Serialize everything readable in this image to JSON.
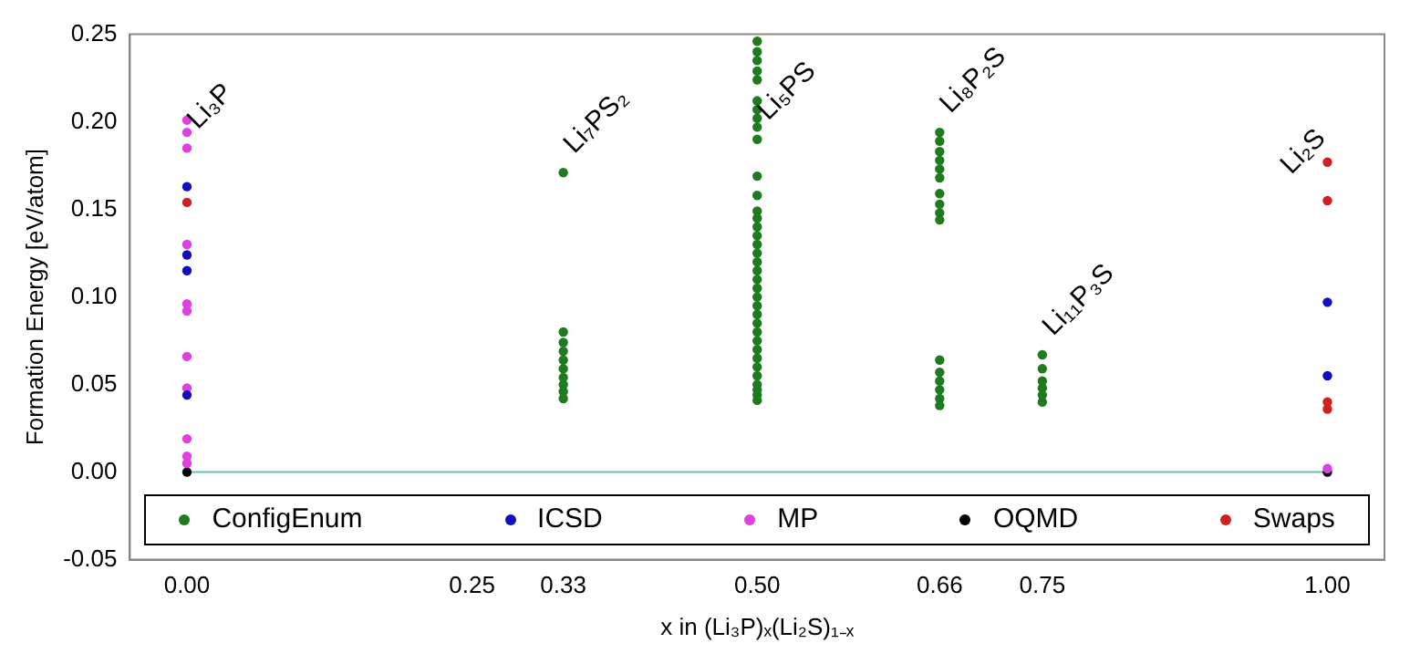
{
  "chart_data": {
    "type": "scatter",
    "xlabel": "x in (Li₃P)ₓ(Li₂S)₁₋ₓ",
    "ylabel": "Formation Energy [eV/atom]",
    "xlim": [
      -0.05,
      1.05
    ],
    "ylim": [
      -0.05,
      0.25
    ],
    "xticks": [
      {
        "value": 0,
        "label": "0.00"
      },
      {
        "value": 0.25,
        "label": "0.25"
      },
      {
        "value": 0.33,
        "label": "0.33"
      },
      {
        "value": 0.5,
        "label": "0.50"
      },
      {
        "value": 0.66,
        "label": "0.66"
      },
      {
        "value": 0.75,
        "label": "0.75"
      },
      {
        "value": 1,
        "label": "1.00"
      }
    ],
    "yticks": [
      {
        "value": -0.05,
        "label": "-0.05"
      },
      {
        "value": 0,
        "label": "0.00"
      },
      {
        "value": 0.05,
        "label": "0.05"
      },
      {
        "value": 0.1,
        "label": "0.10"
      },
      {
        "value": 0.15,
        "label": "0.15"
      },
      {
        "value": 0.2,
        "label": "0.20"
      },
      {
        "value": 0.25,
        "label": "0.25"
      }
    ],
    "grid": false,
    "legend": "bottom",
    "marker": "circle",
    "ref_lines": [
      {
        "axis": "y",
        "value": 0,
        "color": "#66c2b0"
      }
    ],
    "annotations": [
      {
        "text": "Li₃P",
        "x": 0,
        "y": 0.185
      },
      {
        "text": "Li₇PS₂",
        "x": 0.33,
        "y": 0.171
      },
      {
        "text": "Li₅PS",
        "x": 0.5,
        "y": 0.19
      },
      {
        "text": "Li₈P₂S",
        "x": 0.66,
        "y": 0.194
      },
      {
        "text": "Li₁₁P₃S",
        "x": 0.75,
        "y": 0.067
      },
      {
        "text": "Li₂S",
        "x": 1,
        "y": 0.177
      }
    ],
    "series": [
      {
        "name": "ConfigEnum",
        "color": "#1e7b1e",
        "x": [
          0.33,
          0.33,
          0.33,
          0.33,
          0.33,
          0.33,
          0.33,
          0.33,
          0.33,
          0.33,
          0.5,
          0.5,
          0.5,
          0.5,
          0.5,
          0.5,
          0.5,
          0.5,
          0.5,
          0.5,
          0.5,
          0.5,
          0.5,
          0.5,
          0.5,
          0.5,
          0.5,
          0.5,
          0.5,
          0.5,
          0.5,
          0.5,
          0.5,
          0.5,
          0.5,
          0.5,
          0.5,
          0.5,
          0.5,
          0.5,
          0.5,
          0.5,
          0.5,
          0.5,
          0.5,
          0.5,
          0.66,
          0.66,
          0.66,
          0.66,
          0.66,
          0.66,
          0.66,
          0.66,
          0.66,
          0.66,
          0.66,
          0.66,
          0.66,
          0.66,
          0.66,
          0.66,
          0.75,
          0.75,
          0.75,
          0.75,
          0.75,
          0.75
        ],
        "values": [
          0.171,
          0.08,
          0.074,
          0.069,
          0.064,
          0.059,
          0.054,
          0.05,
          0.046,
          0.042,
          0.246,
          0.24,
          0.235,
          0.229,
          0.224,
          0.212,
          0.207,
          0.202,
          0.197,
          0.19,
          0.169,
          0.158,
          0.149,
          0.145,
          0.14,
          0.135,
          0.13,
          0.125,
          0.12,
          0.115,
          0.11,
          0.105,
          0.1,
          0.095,
          0.09,
          0.085,
          0.08,
          0.075,
          0.07,
          0.065,
          0.06,
          0.055,
          0.05,
          0.047,
          0.044,
          0.041,
          0.194,
          0.189,
          0.183,
          0.178,
          0.173,
          0.168,
          0.159,
          0.153,
          0.148,
          0.144,
          0.064,
          0.057,
          0.052,
          0.047,
          0.042,
          0.038,
          0.067,
          0.059,
          0.052,
          0.048,
          0.044,
          0.04
        ]
      },
      {
        "name": "ICSD",
        "color": "#1010c0",
        "x": [
          0,
          0,
          0,
          0,
          1,
          1
        ],
        "values": [
          0.163,
          0.124,
          0.115,
          0.044,
          0.097,
          0.055
        ]
      },
      {
        "name": "MP",
        "color": "#e040e0",
        "x": [
          0,
          0,
          0,
          0,
          0,
          0,
          0,
          0,
          0,
          0,
          0,
          1
        ],
        "values": [
          0.201,
          0.194,
          0.185,
          0.13,
          0.096,
          0.092,
          0.066,
          0.048,
          0.019,
          0.009,
          0.005,
          0.002
        ]
      },
      {
        "name": "OQMD",
        "color": "#000000",
        "x": [
          0,
          1
        ],
        "values": [
          0,
          0
        ]
      },
      {
        "name": "Swaps",
        "color": "#d02020",
        "x": [
          0,
          1,
          1,
          1,
          1
        ],
        "values": [
          0.154,
          0.177,
          0.155,
          0.04,
          0.036
        ]
      }
    ]
  }
}
